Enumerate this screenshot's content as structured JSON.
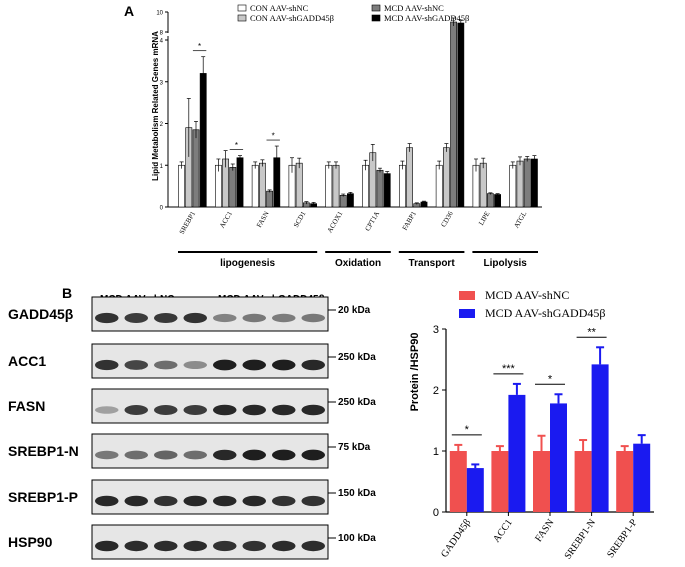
{
  "panel_labels": {
    "a": "A",
    "b": "B"
  },
  "chart_data": [
    {
      "type": "bar",
      "ylabel": "Lipid Metabolism Related Genes mRNA",
      "ylim": [
        0,
        4.2
      ],
      "y_axis_break": true,
      "upper_segment_ylim": [
        8,
        10
      ],
      "yticks": [
        0,
        1,
        2,
        3,
        4
      ],
      "upper_yticks": [
        8,
        10
      ],
      "categories": [
        "SREBP1",
        "ACC1",
        "FASN",
        "SCD1",
        "ACOX1",
        "CPT1A",
        "FABP1",
        "CD36",
        "LIPE",
        "ATGL"
      ],
      "series": [
        {
          "name": "CON AAV-shNC",
          "color": "#ffffff",
          "values": [
            1.0,
            1.0,
            1.0,
            1.0,
            1.0,
            1.0,
            1.0,
            1.0,
            1.0,
            1.0
          ],
          "errors": [
            0.08,
            0.15,
            0.08,
            0.18,
            0.08,
            0.12,
            0.1,
            0.1,
            0.15,
            0.08
          ]
        },
        {
          "name": "CON AAV-shGADD45β",
          "color": "#c8c8c8",
          "values": [
            1.9,
            1.15,
            1.05,
            1.05,
            1.0,
            1.3,
            1.42,
            1.42,
            1.05,
            1.1
          ],
          "errors": [
            0.7,
            0.2,
            0.08,
            0.12,
            0.08,
            0.2,
            0.1,
            0.1,
            0.12,
            0.1
          ]
        },
        {
          "name": "MCD AAV-shNC",
          "color": "#7d7d7d",
          "values": [
            1.85,
            0.95,
            0.38,
            0.1,
            0.28,
            0.88,
            0.08,
            9.0,
            0.32,
            1.15
          ],
          "errors": [
            0.2,
            0.08,
            0.03,
            0.03,
            0.03,
            0.05,
            0.02,
            0.4,
            0.02,
            0.06
          ]
        },
        {
          "name": "MCD AAV-shGADD45β",
          "color": "#000000",
          "values": [
            3.2,
            1.18,
            1.18,
            0.08,
            0.32,
            0.8,
            0.12,
            8.9,
            0.3,
            1.15
          ],
          "errors": [
            0.4,
            0.05,
            0.28,
            0.03,
            0.03,
            0.05,
            0.02,
            0.3,
            0.02,
            0.08
          ]
        }
      ],
      "significance": [
        {
          "category": "SREBP1",
          "label": "*"
        },
        {
          "category": "ACC1",
          "label": "*"
        },
        {
          "category": "FASN",
          "label": "*"
        }
      ],
      "groups": [
        {
          "label": "lipogenesis",
          "start": "SREBP1",
          "end": "SCD1"
        },
        {
          "label": "Oxidation",
          "start": "ACOX1",
          "end": "CPT1A"
        },
        {
          "label": "Transport",
          "start": "FABP1",
          "end": "CD36"
        },
        {
          "label": "Lipolysis",
          "start": "LIPE",
          "end": "ATGL"
        }
      ]
    },
    {
      "type": "bar",
      "ylabel": "Protein /HSP90",
      "ylim": [
        0,
        3
      ],
      "yticks": [
        0,
        1,
        2,
        3
      ],
      "categories": [
        "GADD45β",
        "ACC1",
        "FASN",
        "SREBP1-N",
        "SREBP1-P"
      ],
      "series": [
        {
          "name": "MCD  AAV-shNC",
          "color": "#f0504f",
          "values": [
            1.0,
            1.0,
            1.0,
            1.0,
            1.0
          ],
          "errors": [
            0.1,
            0.08,
            0.25,
            0.18,
            0.08
          ]
        },
        {
          "name": "MCD  AAV-shGADD45β",
          "color": "#1a1af0",
          "values": [
            0.72,
            1.92,
            1.78,
            2.42,
            1.12
          ],
          "errors": [
            0.06,
            0.18,
            0.15,
            0.28,
            0.14
          ]
        }
      ],
      "significance": [
        {
          "category": "GADD45β",
          "label": "*"
        },
        {
          "category": "ACC1",
          "label": "***"
        },
        {
          "category": "FASN",
          "label": "*"
        },
        {
          "category": "SREBP1-N",
          "label": "**"
        }
      ]
    }
  ],
  "blot": {
    "group_labels": [
      "MCD AAV-shNC",
      "MCD AAV-shGADD45β"
    ],
    "rows": [
      {
        "protein": "GADD45β",
        "marker": "20 kDa",
        "intensities": [
          0.85,
          0.8,
          0.82,
          0.85,
          0.45,
          0.5,
          0.48,
          0.5
        ]
      },
      {
        "protein": "ACC1",
        "marker": "250 kDa",
        "intensities": [
          0.85,
          0.75,
          0.55,
          0.4,
          0.95,
          0.95,
          0.95,
          0.9
        ]
      },
      {
        "protein": "FASN",
        "marker": "250 kDa",
        "intensities": [
          0.3,
          0.8,
          0.8,
          0.8,
          0.9,
          0.9,
          0.9,
          0.9
        ]
      },
      {
        "protein": "SREBP1-N",
        "marker": "75 kDa",
        "intensities": [
          0.5,
          0.55,
          0.6,
          0.55,
          0.9,
          0.95,
          0.95,
          0.95
        ]
      },
      {
        "protein": "SREBP1-P",
        "marker": "150 kDa",
        "intensities": [
          0.9,
          0.9,
          0.85,
          0.9,
          0.9,
          0.9,
          0.85,
          0.85
        ]
      },
      {
        "protein": "HSP90",
        "marker": "100 kDa",
        "intensities": [
          0.9,
          0.88,
          0.88,
          0.88,
          0.85,
          0.85,
          0.88,
          0.88
        ]
      }
    ]
  }
}
